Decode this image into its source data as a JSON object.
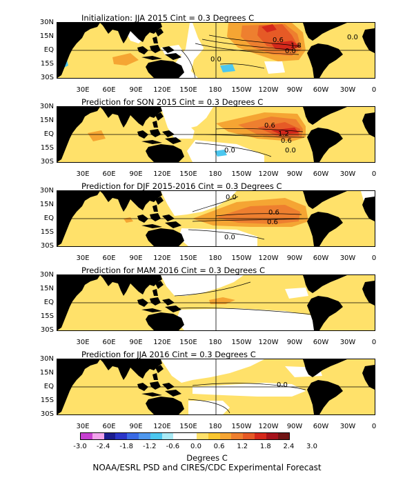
{
  "panels": [
    {
      "title": "Initialization: JJA 2015  Cint = 0.3 Degrees C",
      "labels": [
        "0.6",
        "1.8",
        "0.0",
        "0.0",
        "0.0"
      ]
    },
    {
      "title": "Prediction for SON 2015  Cint = 0.3 Degrees C",
      "labels": [
        "0.6",
        "1.2",
        "0.6",
        "0.0",
        "0.0"
      ]
    },
    {
      "title": "Prediction for DJF 2015-2016  Cint = 0.3 Degrees C",
      "labels": [
        "0.0",
        "0.6",
        "0.6",
        "0.0"
      ]
    },
    {
      "title": "Prediction for MAM 2016  Cint = 0.3 Degrees C",
      "labels": []
    },
    {
      "title": "Prediction for JJA 2016  Cint = 0.3 Degrees C",
      "labels": [
        "0.0"
      ]
    }
  ],
  "lat_labels": [
    "30N",
    "15N",
    "EQ",
    "15S",
    "30S"
  ],
  "lon_labels": [
    "30E",
    "60E",
    "90E",
    "120E",
    "150E",
    "180",
    "150W",
    "120W",
    "90W",
    "60W",
    "30W",
    "0"
  ],
  "colorbar": {
    "colors": [
      "#c63fd0",
      "#f2a3ec",
      "#1c1c8e",
      "#2b35c8",
      "#3a6ae4",
      "#4f98ee",
      "#4cc7ef",
      "#a9eaf5",
      "#ffffff",
      "#ffffff",
      "#ffe16a",
      "#f9c630",
      "#f5a533",
      "#ee7f2f",
      "#e65a26",
      "#d5281b",
      "#a6121b",
      "#701414"
    ],
    "tick_labels": [
      "-3.0",
      "-2.4",
      "-1.8",
      "-1.2",
      "-0.6",
      "0.0",
      "0.6",
      "1.2",
      "1.8",
      "2.4",
      "3.0"
    ]
  },
  "units": "Degrees C",
  "credit": "NOAA/ESRL PSD and CIRES/CDC Experimental Forecast"
}
